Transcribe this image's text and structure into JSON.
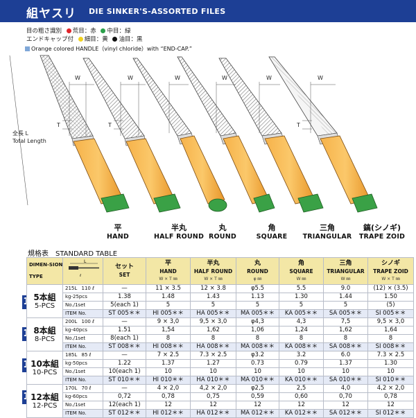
{
  "header": {
    "title_jp": "組ヤスリ",
    "title_en": "DIE SINKER'S-ASSORTED FILES"
  },
  "legend": {
    "row1_label": "目の粗さ識別",
    "row2_label": "エンドキャップ付",
    "items": [
      {
        "text": "荒目：赤",
        "color": "#e0242a"
      },
      {
        "text": "中目：緑",
        "color": "#2aa04a"
      },
      {
        "text": "細目：黄",
        "color": "#f2d21f"
      },
      {
        "text": "油目：黒",
        "color": "#111111"
      }
    ],
    "handle_note": "Orange colored HANDLE（vinyl chloride）with “END-CAP.”"
  },
  "diagram": {
    "w": "W",
    "t": "T",
    "length_jp": "全長 L",
    "length_en": "Total Length"
  },
  "files": [
    {
      "jp": "平",
      "en": "HAND"
    },
    {
      "jp": "半丸",
      "en": "HALF ROUND"
    },
    {
      "jp": "丸",
      "en": "ROUND"
    },
    {
      "jp": "角",
      "en": "SQUARE"
    },
    {
      "jp": "三角",
      "en": "TRIANGULAR"
    },
    {
      "jp": "鎬(シノギ)",
      "en": "TRAPE ZOID"
    }
  ],
  "table_title": "規格表　STANDARD TABLE",
  "table": {
    "dim_label": "DIMEN-SION",
    "type_label": "TYPE",
    "set_jp": "セット",
    "set_en": "SET",
    "cols": [
      {
        "jp": "平",
        "en": "HAND",
        "u": "W × T ㎜"
      },
      {
        "jp": "半丸",
        "en": "HALF ROUND",
        "u": "W × T ㎜"
      },
      {
        "jp": "丸",
        "en": "ROUND",
        "u": "φ ㎜"
      },
      {
        "jp": "角",
        "en": "SQUARE",
        "u": "W ㎜"
      },
      {
        "jp": "三角",
        "en": "TRIANGULAR",
        "u": "W ㎜"
      },
      {
        "jp": "シノギ",
        "en": "TRAPE ZOID",
        "u": "W × T ㎜"
      }
    ],
    "groups": [
      {
        "num": "105",
        "jp": "5本組",
        "en": "5-PCS",
        "len": "215L",
        "pack": "110 ℓ",
        "row1": [
          "—",
          "11 × 3.5",
          "12 × 3.8",
          "φ5.5",
          "5.5",
          "9.0",
          "(12) × (3.5)"
        ],
        "wlabel": "kg-25pcs",
        "row2": [
          "1.38",
          "1.48",
          "1.43",
          "1.13",
          "1.30",
          "1.44",
          "1.50"
        ],
        "qlabel": "No./1set",
        "row3": [
          "5(each 1)",
          "5",
          "5",
          "5",
          "5",
          "5",
          "(5)"
        ],
        "ilabel": "ITEM No.",
        "row4": [
          "ST 005＊＊",
          "HI 005＊＊",
          "HA 005＊＊",
          "MA 005＊＊",
          "KA 005＊＊",
          "SA 005＊＊",
          "SI 005＊＊"
        ]
      },
      {
        "num": "108",
        "jp": "8本組",
        "en": "8-PCS",
        "len": "200L",
        "pack": "100 ℓ",
        "row1": [
          "—",
          "9 × 3,0",
          "9,5 × 3,0",
          "φ4,3",
          "4,3",
          "7,5",
          "9,5 × 3,0"
        ],
        "wlabel": "kg-40pcs",
        "row2": [
          "1.51",
          "1,54",
          "1,62",
          "1,06",
          "1,24",
          "1,62",
          "1,64"
        ],
        "qlabel": "No./1set",
        "row3": [
          "8(each 1)",
          "8",
          "8",
          "8",
          "8",
          "8",
          "8"
        ],
        "ilabel": "ITEM No.",
        "row4": [
          "ST 008＊＊",
          "HI 008＊＊",
          "HA 008＊＊",
          "MA 008＊＊",
          "KA 008＊＊",
          "SA 008＊＊",
          "SI 008＊＊"
        ]
      },
      {
        "num": "110",
        "jp": "10本組",
        "en": "10-PCS",
        "len": "185L",
        "pack": "85 ℓ",
        "row1": [
          "—",
          "7 × 2.5",
          "7.3 × 2.5",
          "φ3.2",
          "3.2",
          "6.0",
          "7.3 × 2.5"
        ],
        "wlabel": "kg-50pcs",
        "row2": [
          "1.22",
          "1.37",
          "1.27",
          "0.73",
          "0.79",
          "1.37",
          "1.30"
        ],
        "qlabel": "No./1set",
        "row3": [
          "10(each 1)",
          "10",
          "10",
          "10",
          "10",
          "10",
          "10"
        ],
        "ilabel": "ITEM No.",
        "row4": [
          "ST 010＊＊",
          "HI 010＊＊",
          "HA 010＊＊",
          "MA 010＊＊",
          "KA 010＊＊",
          "SA 010＊＊",
          "SI 010＊＊"
        ]
      },
      {
        "num": "112",
        "jp": "12本組",
        "en": "12-PCS",
        "len": "170L",
        "pack": "70 ℓ",
        "row1": [
          "—",
          "4 × 2,0",
          "4,2 × 2,0",
          "φ2,5",
          "2,5",
          "4,0",
          "4,2 × 2,0"
        ],
        "wlabel": "kg-60pcs",
        "row2": [
          "0,72",
          "0,78",
          "0,75",
          "0,59",
          "0,60",
          "0,70",
          "0,78"
        ],
        "qlabel": "No./1set",
        "row3": [
          "12(each 1)",
          "12",
          "12",
          "12",
          "12",
          "12",
          "12"
        ],
        "ilabel": "ITEM No.",
        "row4": [
          "ST 012＊＊",
          "HI 012＊＊",
          "HA 012＊＊",
          "MA 012＊＊",
          "KA 012＊＊",
          "SA 012＊＊",
          "SI 012＊＊"
        ]
      }
    ]
  }
}
